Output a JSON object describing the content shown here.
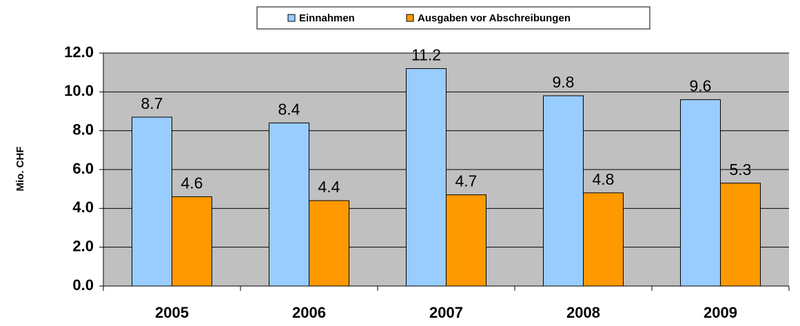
{
  "chart_data": {
    "type": "bar",
    "ylabel": "Mio. CHF",
    "categories": [
      "2005",
      "2006",
      "2007",
      "2008",
      "2009"
    ],
    "series": [
      {
        "name": "Einnahmen",
        "color": "#99ccff",
        "values": [
          8.7,
          8.4,
          11.2,
          9.8,
          9.6
        ]
      },
      {
        "name": "Ausgaben vor Abschreibungen",
        "color": "#ff9900",
        "values": [
          4.6,
          4.4,
          4.7,
          4.8,
          5.3
        ]
      }
    ],
    "ylim": [
      0,
      12
    ],
    "yticks": [
      {
        "value": 0,
        "label": "0.0"
      },
      {
        "value": 2,
        "label": "2.0"
      },
      {
        "value": 4,
        "label": "4.0"
      },
      {
        "value": 6,
        "label": "6.0"
      },
      {
        "value": 8,
        "label": "8.0"
      },
      {
        "value": 10,
        "label": "10.0"
      },
      {
        "value": 12,
        "label": "12.0"
      }
    ],
    "grid": true,
    "legend": "top"
  }
}
